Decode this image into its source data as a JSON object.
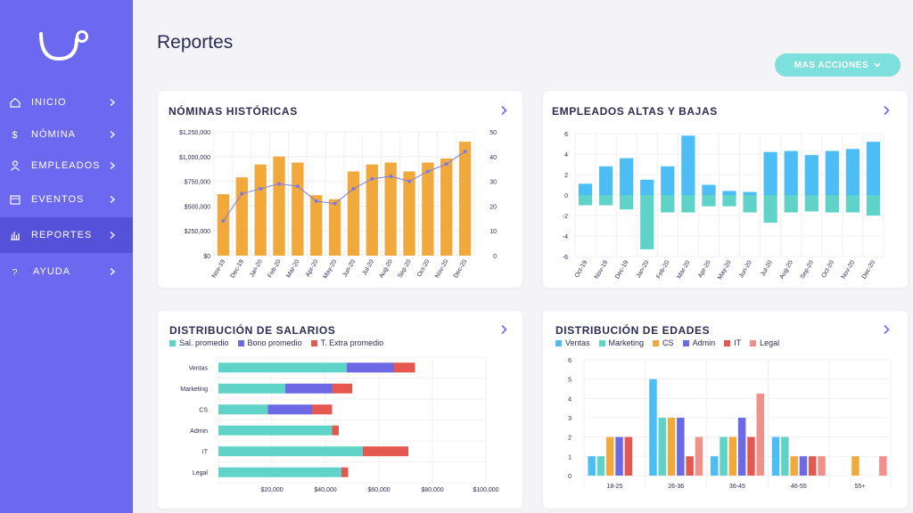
{
  "page": {
    "title": "Reportes"
  },
  "header": {
    "actions_label": "MAS ACCIONES"
  },
  "colors": {
    "sidebar": "#6c68f0",
    "sidebar_active": "#5551d9",
    "accent": "#7ee0dd",
    "orange": "#f2a93b",
    "purple": "#7b7be8",
    "blue": "#4dbdf5",
    "teal": "#5fd3c7",
    "red": "#e5584f",
    "pink": "#f0908a",
    "royal": "#6d68e3"
  },
  "sidebar": {
    "logo_icon": "logo-icon",
    "items": [
      {
        "label": "INICIO",
        "icon": "home-icon"
      },
      {
        "label": "NÓMINA",
        "icon": "dollar-icon"
      },
      {
        "label": "EMPLEADOS",
        "icon": "user-icon"
      },
      {
        "label": "EVENTOS",
        "icon": "calendar-icon"
      },
      {
        "label": "REPORTES",
        "icon": "chart-icon",
        "active": true
      },
      {
        "label": "AYUDA",
        "icon": "help-icon"
      }
    ]
  },
  "cards": {
    "nominas": {
      "title": "NÓMINAS HISTÓRICAS"
    },
    "altas": {
      "title": "EMPLEADOS ALTAS Y BAJAS"
    },
    "salarios": {
      "title": "DISTRIBUCIÓN DE SALARIOS"
    },
    "edades": {
      "title": "DISTRIBUCIÓN DE EDADES"
    }
  },
  "chart_data": [
    {
      "type": "bar",
      "id": "nominas",
      "categories": [
        "Nov-19",
        "Dec-19",
        "Jan-20",
        "Feb-20",
        "Mar-20",
        "Apr-20",
        "May-20",
        "Jun-20",
        "Jul-20",
        "Aug-20",
        "Sep-20",
        "Oct-20",
        "Nov-20",
        "Dec-20"
      ],
      "series": [
        {
          "values": [
            620000,
            790000,
            920000,
            1000000,
            940000,
            610000,
            570000,
            850000,
            920000,
            940000,
            850000,
            940000,
            980000,
            1150000
          ],
          "color": "#f2a93b"
        },
        {
          "values": [
            14,
            25,
            27,
            29,
            28,
            22,
            21,
            27,
            31,
            32,
            30,
            34,
            37,
            42
          ],
          "color": "#7b7be8",
          "axis": "right",
          "type": "line"
        }
      ],
      "yticks_left": [
        "$0",
        "$250,000",
        "$500,000",
        "$750,000",
        "$1,000,000",
        "$1,250,000"
      ],
      "yticks_right": [
        "0",
        "10",
        "20",
        "30",
        "40",
        "50"
      ],
      "ylim": [
        0,
        1250000
      ],
      "ylim_right": [
        0,
        50
      ]
    },
    {
      "type": "bar",
      "id": "altas",
      "categories": [
        "Oct-19",
        "Nov-19",
        "Dec-19",
        "Jan-20",
        "Feb-20",
        "Mar-20",
        "Apr-20",
        "May-20",
        "Jun-20",
        "Jul-20",
        "Aug-20",
        "Sep-20",
        "Oct-20",
        "Nov-20",
        "Dec-20"
      ],
      "series": [
        {
          "values": [
            1.1,
            2.8,
            3.6,
            1.5,
            2.8,
            5.8,
            1.0,
            0.4,
            0.3,
            4.2,
            4.3,
            3.9,
            4.3,
            4.5,
            5.2
          ],
          "color": "#4dbdf5"
        },
        {
          "values": [
            -1.0,
            -1.0,
            -1.4,
            -5.3,
            -1.7,
            -1.7,
            -1.1,
            -1.1,
            -1.7,
            -2.7,
            -1.7,
            -1.6,
            -1.7,
            -1.7,
            -2.0
          ],
          "color": "#5fd3c7"
        }
      ],
      "yticks": [
        "-6",
        "-4",
        "-2",
        "0",
        "2",
        "4",
        "6"
      ],
      "ylim": [
        -6,
        6
      ]
    },
    {
      "type": "bar",
      "id": "salarios",
      "orientation": "horizontal",
      "categories": [
        "Ventas",
        "Marketing",
        "CS",
        "Admin",
        "IT",
        "Legal"
      ],
      "series": [
        {
          "name": "Sal. promedio",
          "values": [
            48000,
            25000,
            18500,
            42500,
            54000,
            46000
          ],
          "color": "#5fd3c7"
        },
        {
          "name": "Bono promedio",
          "values": [
            17500,
            17500,
            16500,
            0,
            0,
            0
          ],
          "color": "#6d68e3"
        },
        {
          "name": "T. Extra promedio",
          "values": [
            8000,
            7500,
            7500,
            2500,
            17000,
            2500
          ],
          "color": "#e5584f"
        }
      ],
      "xticks": [
        "$20,000",
        "$40,000",
        "$60,000",
        "$80,000",
        "$100,000"
      ],
      "xlim": [
        0,
        100000
      ]
    },
    {
      "type": "bar",
      "id": "edades",
      "categories": [
        "18-25",
        "26-36",
        "36-45",
        "46-55",
        "55+"
      ],
      "series": [
        {
          "name": "Ventas",
          "values": [
            1,
            5,
            1,
            2,
            0
          ],
          "color": "#4dbdf5"
        },
        {
          "name": "Marketing",
          "values": [
            1,
            3,
            2,
            2,
            0
          ],
          "color": "#5fd3c7"
        },
        {
          "name": "CS",
          "values": [
            2,
            3,
            2,
            1,
            1
          ],
          "color": "#f2a93b"
        },
        {
          "name": "Admin",
          "values": [
            2,
            3,
            3,
            1,
            0
          ],
          "color": "#6d68e3"
        },
        {
          "name": "IT",
          "values": [
            2,
            1,
            2,
            1,
            0
          ],
          "color": "#e5584f"
        },
        {
          "name": "Legal",
          "values": [
            0,
            2,
            4.25,
            1,
            1
          ],
          "color": "#f0908a"
        }
      ],
      "yticks": [
        "0",
        "1",
        "2",
        "3",
        "4",
        "5",
        "6"
      ],
      "ylim": [
        0,
        6
      ]
    }
  ]
}
